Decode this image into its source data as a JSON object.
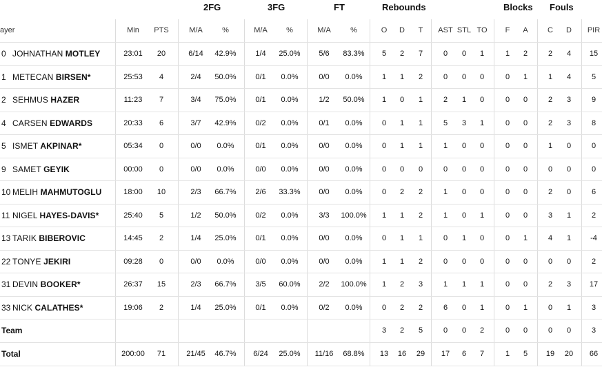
{
  "header": {
    "groups": {
      "fg2": "2FG",
      "fg3": "3FG",
      "ft": "FT",
      "reb": "Rebounds",
      "blk": "Blocks",
      "fouls": "Fouls"
    },
    "cols": {
      "player": "ayer",
      "min": "Min",
      "pts": "PTS",
      "fg2_ma": "M/A",
      "fg2_pct": "%",
      "fg3_ma": "M/A",
      "fg3_pct": "%",
      "ft_ma": "M/A",
      "ft_pct": "%",
      "reb_o": "O",
      "reb_d": "D",
      "reb_t": "T",
      "ast": "AST",
      "stl": "STL",
      "to": "TO",
      "blk_f": "F",
      "blk_a": "A",
      "foul_c": "C",
      "foul_d": "D",
      "pir": "PIR"
    }
  },
  "players": [
    {
      "num": "0",
      "first": "JOHNATHAN",
      "last": "MOTLEY",
      "min": "23:01",
      "pts": "20",
      "fg2": "6/14",
      "fg2p": "42.9%",
      "fg3": "1/4",
      "fg3p": "25.0%",
      "ft": "5/6",
      "ftp": "83.3%",
      "o": "5",
      "d": "2",
      "t": "7",
      "ast": "0",
      "stl": "0",
      "to": "1",
      "bf": "1",
      "ba": "2",
      "fc": "2",
      "fd": "4",
      "pir": "15"
    },
    {
      "num": "1",
      "first": "METECAN",
      "last": "BIRSEN*",
      "min": "25:53",
      "pts": "4",
      "fg2": "2/4",
      "fg2p": "50.0%",
      "fg3": "0/1",
      "fg3p": "0.0%",
      "ft": "0/0",
      "ftp": "0.0%",
      "o": "1",
      "d": "1",
      "t": "2",
      "ast": "0",
      "stl": "0",
      "to": "0",
      "bf": "0",
      "ba": "1",
      "fc": "1",
      "fd": "4",
      "pir": "5"
    },
    {
      "num": "2",
      "first": "SEHMUS",
      "last": "HAZER",
      "min": "11:23",
      "pts": "7",
      "fg2": "3/4",
      "fg2p": "75.0%",
      "fg3": "0/1",
      "fg3p": "0.0%",
      "ft": "1/2",
      "ftp": "50.0%",
      "o": "1",
      "d": "0",
      "t": "1",
      "ast": "2",
      "stl": "1",
      "to": "0",
      "bf": "0",
      "ba": "0",
      "fc": "2",
      "fd": "3",
      "pir": "9"
    },
    {
      "num": "4",
      "first": "CARSEN",
      "last": "EDWARDS",
      "min": "20:33",
      "pts": "6",
      "fg2": "3/7",
      "fg2p": "42.9%",
      "fg3": "0/2",
      "fg3p": "0.0%",
      "ft": "0/1",
      "ftp": "0.0%",
      "o": "0",
      "d": "1",
      "t": "1",
      "ast": "5",
      "stl": "3",
      "to": "1",
      "bf": "0",
      "ba": "0",
      "fc": "2",
      "fd": "3",
      "pir": "8"
    },
    {
      "num": "5",
      "first": "ISMET",
      "last": "AKPINAR*",
      "min": "05:34",
      "pts": "0",
      "fg2": "0/0",
      "fg2p": "0.0%",
      "fg3": "0/1",
      "fg3p": "0.0%",
      "ft": "0/0",
      "ftp": "0.0%",
      "o": "0",
      "d": "1",
      "t": "1",
      "ast": "1",
      "stl": "0",
      "to": "0",
      "bf": "0",
      "ba": "0",
      "fc": "1",
      "fd": "0",
      "pir": "0"
    },
    {
      "num": "9",
      "first": "SAMET",
      "last": "GEYIK",
      "min": "00:00",
      "pts": "0",
      "fg2": "0/0",
      "fg2p": "0.0%",
      "fg3": "0/0",
      "fg3p": "0.0%",
      "ft": "0/0",
      "ftp": "0.0%",
      "o": "0",
      "d": "0",
      "t": "0",
      "ast": "0",
      "stl": "0",
      "to": "0",
      "bf": "0",
      "ba": "0",
      "fc": "0",
      "fd": "0",
      "pir": "0"
    },
    {
      "num": "10",
      "first": "MELIH",
      "last": "MAHMUTOGLU",
      "min": "18:00",
      "pts": "10",
      "fg2": "2/3",
      "fg2p": "66.7%",
      "fg3": "2/6",
      "fg3p": "33.3%",
      "ft": "0/0",
      "ftp": "0.0%",
      "o": "0",
      "d": "2",
      "t": "2",
      "ast": "1",
      "stl": "0",
      "to": "0",
      "bf": "0",
      "ba": "0",
      "fc": "2",
      "fd": "0",
      "pir": "6"
    },
    {
      "num": "11",
      "first": "NIGEL",
      "last": "HAYES-DAVIS*",
      "min": "25:40",
      "pts": "5",
      "fg2": "1/2",
      "fg2p": "50.0%",
      "fg3": "0/2",
      "fg3p": "0.0%",
      "ft": "3/3",
      "ftp": "100.0%",
      "o": "1",
      "d": "1",
      "t": "2",
      "ast": "1",
      "stl": "0",
      "to": "1",
      "bf": "0",
      "ba": "0",
      "fc": "3",
      "fd": "1",
      "pir": "2"
    },
    {
      "num": "13",
      "first": "TARIK",
      "last": "BIBEROVIC",
      "min": "14:45",
      "pts": "2",
      "fg2": "1/4",
      "fg2p": "25.0%",
      "fg3": "0/1",
      "fg3p": "0.0%",
      "ft": "0/0",
      "ftp": "0.0%",
      "o": "0",
      "d": "1",
      "t": "1",
      "ast": "0",
      "stl": "1",
      "to": "0",
      "bf": "0",
      "ba": "1",
      "fc": "4",
      "fd": "1",
      "pir": "-4"
    },
    {
      "num": "22",
      "first": "TONYE",
      "last": "JEKIRI",
      "min": "09:28",
      "pts": "0",
      "fg2": "0/0",
      "fg2p": "0.0%",
      "fg3": "0/0",
      "fg3p": "0.0%",
      "ft": "0/0",
      "ftp": "0.0%",
      "o": "1",
      "d": "1",
      "t": "2",
      "ast": "0",
      "stl": "0",
      "to": "0",
      "bf": "0",
      "ba": "0",
      "fc": "0",
      "fd": "0",
      "pir": "2"
    },
    {
      "num": "31",
      "first": "DEVIN",
      "last": "BOOKER*",
      "min": "26:37",
      "pts": "15",
      "fg2": "2/3",
      "fg2p": "66.7%",
      "fg3": "3/5",
      "fg3p": "60.0%",
      "ft": "2/2",
      "ftp": "100.0%",
      "o": "1",
      "d": "2",
      "t": "3",
      "ast": "1",
      "stl": "1",
      "to": "1",
      "bf": "0",
      "ba": "0",
      "fc": "2",
      "fd": "3",
      "pir": "17"
    },
    {
      "num": "33",
      "first": "NICK",
      "last": "CALATHES*",
      "min": "19:06",
      "pts": "2",
      "fg2": "1/4",
      "fg2p": "25.0%",
      "fg3": "0/1",
      "fg3p": "0.0%",
      "ft": "0/2",
      "ftp": "0.0%",
      "o": "0",
      "d": "2",
      "t": "2",
      "ast": "6",
      "stl": "0",
      "to": "1",
      "bf": "0",
      "ba": "1",
      "fc": "0",
      "fd": "1",
      "pir": "3"
    }
  ],
  "team": {
    "label": "Team",
    "o": "3",
    "d": "2",
    "t": "5",
    "ast": "0",
    "stl": "0",
    "to": "2",
    "bf": "0",
    "ba": "0",
    "fc": "0",
    "fd": "0",
    "pir": "3"
  },
  "total": {
    "label": "Total",
    "min": "200:00",
    "pts": "71",
    "fg2": "21/45",
    "fg2p": "46.7%",
    "fg3": "6/24",
    "fg3p": "25.0%",
    "ft": "11/16",
    "ftp": "68.8%",
    "o": "13",
    "d": "16",
    "t": "29",
    "ast": "17",
    "stl": "6",
    "to": "7",
    "bf": "1",
    "ba": "5",
    "fc": "19",
    "fd": "20",
    "pir": "66"
  }
}
